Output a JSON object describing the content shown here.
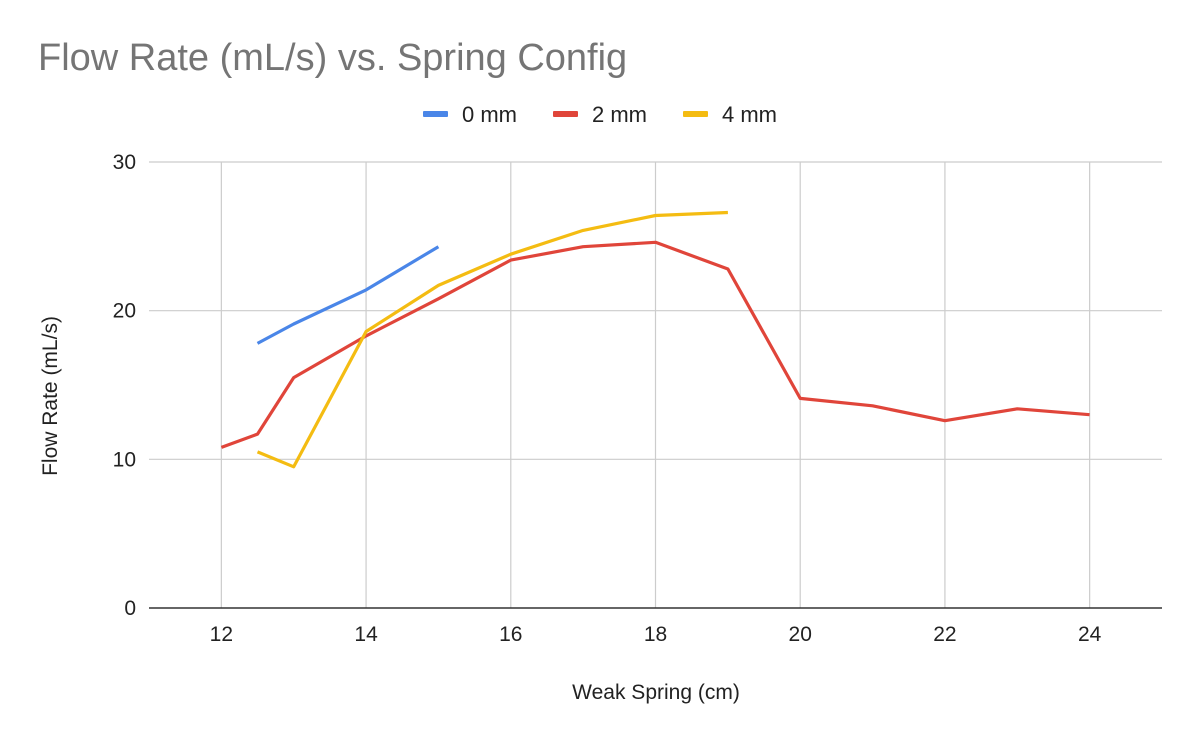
{
  "chart_data": {
    "type": "line",
    "title": "Flow Rate (mL/s) vs. Spring Config",
    "xlabel": "Weak Spring (cm)",
    "ylabel": "Flow Rate (mL/s)",
    "xlim": [
      11,
      25
    ],
    "ylim": [
      0,
      30
    ],
    "x_ticks": [
      12,
      14,
      16,
      18,
      20,
      22,
      24
    ],
    "y_ticks": [
      0,
      10,
      20,
      30
    ],
    "grid": true,
    "legend_position": "top-center",
    "series": [
      {
        "name": "0 mm",
        "color": "#4a86e8",
        "points": [
          [
            12.5,
            17.8
          ],
          [
            13,
            19.1
          ],
          [
            14,
            21.4
          ],
          [
            15,
            24.3
          ]
        ]
      },
      {
        "name": "2 mm",
        "color": "#e0453a",
        "points": [
          [
            12,
            10.8
          ],
          [
            12.5,
            11.7
          ],
          [
            13,
            15.5
          ],
          [
            14,
            18.3
          ],
          [
            15,
            20.8
          ],
          [
            16,
            23.4
          ],
          [
            17,
            24.3
          ],
          [
            18,
            24.6
          ],
          [
            19,
            22.8
          ],
          [
            20,
            14.1
          ],
          [
            21,
            13.6
          ],
          [
            22,
            12.6
          ],
          [
            23,
            13.4
          ],
          [
            24,
            13.0
          ]
        ]
      },
      {
        "name": "4 mm",
        "color": "#f4bc12",
        "points": [
          [
            12.5,
            10.5
          ],
          [
            13,
            9.5
          ],
          [
            14,
            18.6
          ],
          [
            15,
            21.7
          ],
          [
            16,
            23.8
          ],
          [
            17,
            25.4
          ],
          [
            18,
            26.4
          ],
          [
            19,
            26.6
          ]
        ]
      }
    ]
  }
}
